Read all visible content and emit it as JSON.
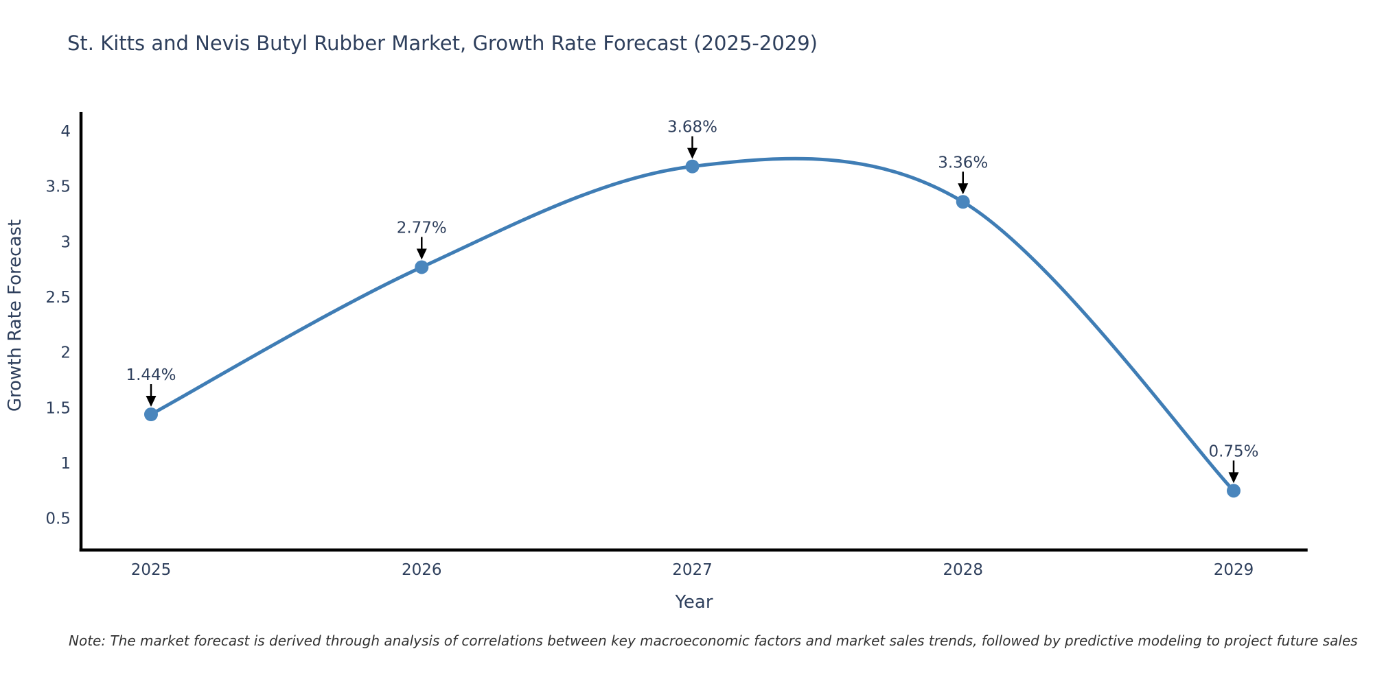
{
  "chart_data": {
    "type": "line",
    "line_shape": "spline",
    "title": "St. Kitts and Nevis Butyl Rubber Market, Growth Rate Forecast (2025-2029)",
    "xlabel": "Year",
    "ylabel": "Growth Rate Forecast",
    "categories": [
      2025,
      2026,
      2027,
      2028,
      2029
    ],
    "x_tick_labels": [
      "2025",
      "2026",
      "2027",
      "2028",
      "2029"
    ],
    "values": [
      1.44,
      2.77,
      3.68,
      3.36,
      0.75
    ],
    "point_labels": [
      "1.44%",
      "2.77%",
      "3.68%",
      "3.36%",
      "0.75%"
    ],
    "y_ticks": [
      {
        "value": 4,
        "label": "4"
      },
      {
        "value": 3.5,
        "label": "3.5"
      },
      {
        "value": 3,
        "label": "3"
      },
      {
        "value": 2.5,
        "label": "2.5"
      },
      {
        "value": 2,
        "label": "2"
      },
      {
        "value": 1.5,
        "label": "1.5"
      },
      {
        "value": 1,
        "label": "1"
      },
      {
        "value": 0.5,
        "label": "0.5"
      }
    ],
    "xlim": [
      2024.74,
      2029.28
    ],
    "ylim": [
      0.21,
      4.17
    ],
    "grid": false,
    "legend": "none",
    "annotation_style": "value label with black down-arrow above each marker"
  },
  "footnote": {
    "text": "Note: The market forecast is derived through analysis of correlations between key macroeconomic factors and market sales trends, followed by predictive modeling to project future sales"
  },
  "colors": {
    "line": "#3f7db5",
    "marker": "#4a86bd",
    "arrow": "#000000",
    "axis": "#000000",
    "text": "#2e3f5c",
    "note": "#333333",
    "background": "#ffffff"
  }
}
